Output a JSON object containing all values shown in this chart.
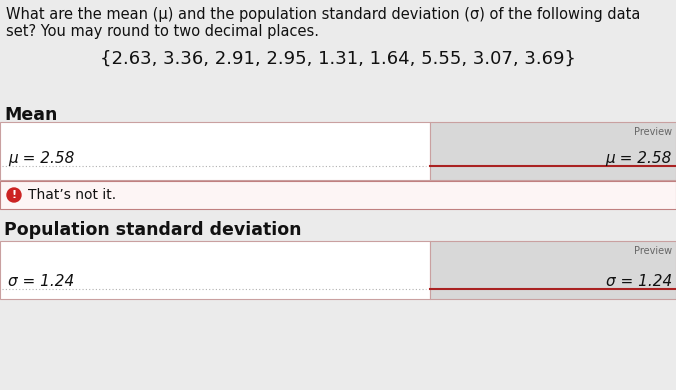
{
  "title_line1": "What are the mean (μ) and the population standard deviation (σ) of the following data",
  "title_line2": "set? You may round to two decimal places.",
  "dataset": "{2.63, 3.36, 2.91, 2.95, 1.31, 1.64, 5.55, 3.07, 3.69}",
  "mean_label": "Mean",
  "mean_input": "μ = 2.58",
  "mean_preview_label": "Preview",
  "mean_preview": "μ = 2.58",
  "error_text": "That’s not it.",
  "std_label": "Population standard deviation",
  "std_input": "σ = 1.24",
  "std_preview_label": "Preview",
  "std_preview": "σ = 1.24",
  "bg_color": "#ebebeb",
  "box_bg": "#ffffff",
  "preview_bg": "#d8d8d8",
  "error_bg": "#fdf5f5",
  "error_border": "#c08080",
  "box_border": "#c9a0a0",
  "dotted_line_color": "#b0b0b0",
  "red_line_color": "#aa2222",
  "text_color": "#111111",
  "small_text_color": "#666666",
  "error_icon_color": "#cc2222",
  "title_fs": 10.5,
  "dataset_fs": 13,
  "section_fs": 12.5,
  "input_fs": 11,
  "preview_fs": 11,
  "preview_label_fs": 7,
  "error_fs": 10
}
